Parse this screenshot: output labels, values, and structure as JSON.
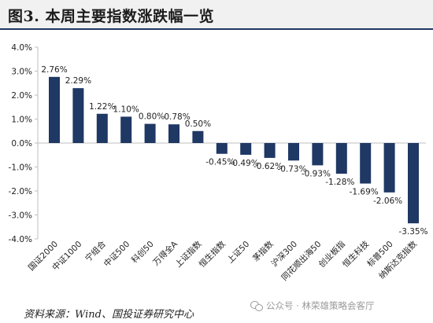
{
  "header": {
    "title": "图3. 本周主要指数涨跌幅一览"
  },
  "footer": {
    "source": "资料来源：Wind、国投证券研究中心",
    "watermark": "公众号 · 林荣雄策略会客厅",
    "watermark_icon": "wechat-icon"
  },
  "colors": {
    "bar": "#1f3864",
    "header_bg": "#f1f1f1",
    "rule": "#1f3864"
  },
  "chart_data": {
    "type": "bar",
    "title": "",
    "xlabel": "",
    "ylabel": "",
    "categories": [
      "国证2000",
      "中证1000",
      "宁组合",
      "中证500",
      "科创50",
      "万得全A",
      "上证指数",
      "恒生指数",
      "上证50",
      "茅指数",
      "沪深300",
      "同花顺出海50",
      "创业板指",
      "恒生科技",
      "标普500",
      "纳斯达克指数"
    ],
    "values": [
      2.76,
      2.29,
      1.22,
      1.1,
      0.8,
      0.78,
      0.5,
      -0.45,
      -0.49,
      -0.62,
      -0.73,
      -0.93,
      -1.28,
      -1.69,
      -2.06,
      -3.35
    ],
    "value_labels": [
      "2.76%",
      "2.29%",
      "1.22%",
      "1.10%",
      "0.80%",
      "0.78%",
      "0.50%",
      "-0.45%",
      "-0.49%",
      "-0.62%",
      "-0.73%",
      "-0.93%",
      "-1.28%",
      "-1.69%",
      "-2.06%",
      "-3.35%"
    ],
    "ylim": [
      -4,
      4
    ],
    "yticks": [
      4,
      3,
      2,
      1,
      0,
      -1,
      -2,
      -3,
      -4
    ],
    "ytick_labels": [
      "4.0%",
      "3.0%",
      "2.0%",
      "1.0%",
      "0.0%",
      "-1.0%",
      "-2.0%",
      "-3.0%",
      "-4.0%"
    ],
    "grid": false,
    "legend": "none"
  }
}
